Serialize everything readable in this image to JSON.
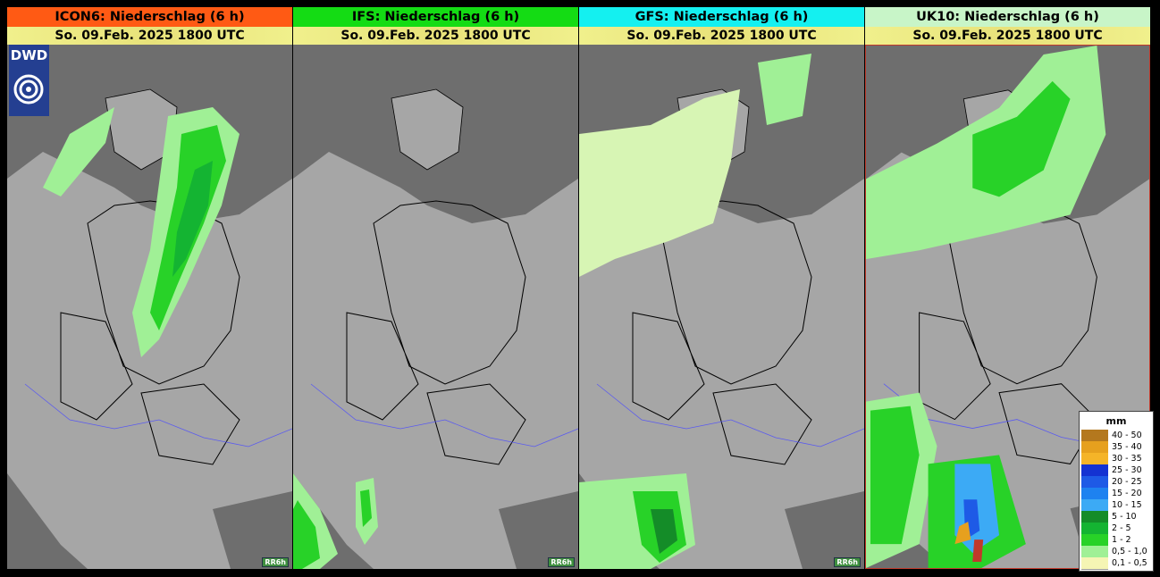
{
  "panels": [
    {
      "title": "ICON6: Niederschlag (6 h)",
      "date": "So. 09.Feb. 2025 1800 UTC",
      "header_color": "#ff5a14",
      "badge": "RR6h"
    },
    {
      "title": "IFS: Niederschlag (6 h)",
      "date": "So. 09.Feb. 2025 1800 UTC",
      "header_color": "#14dc14",
      "badge": "RR6h"
    },
    {
      "title": "GFS: Niederschlag (6 h)",
      "date": "So. 09.Feb. 2025 1800 UTC",
      "header_color": "#14f0f0",
      "badge": "RR6h"
    },
    {
      "title": "UK10: Niederschlag (6 h)",
      "date": "So. 09.Feb. 2025 1800 UTC",
      "header_color": "#c8f5c8",
      "badge": ""
    }
  ],
  "logo": {
    "text": "DWD"
  },
  "legend": {
    "unit": "mm",
    "items": [
      {
        "label": "40 - 50",
        "color": "#b4781e"
      },
      {
        "label": "35 - 40",
        "color": "#e6a01e"
      },
      {
        "label": "30 - 35",
        "color": "#f5b428"
      },
      {
        "label": "25 - 30",
        "color": "#1432d2"
      },
      {
        "label": "20 - 25",
        "color": "#1e5ae6"
      },
      {
        "label": "15 - 20",
        "color": "#1e82f0"
      },
      {
        "label": "10 - 15",
        "color": "#3caaf5"
      },
      {
        "label": "5 - 10",
        "color": "#148c28"
      },
      {
        "label": "2 - 5",
        "color": "#14b432"
      },
      {
        "label": "1 - 2",
        "color": "#28d228"
      },
      {
        "label": "0,5 - 1,0",
        "color": "#a0f096"
      },
      {
        "label": "0,1 - 0,5",
        "color": "#f5f5b4"
      }
    ]
  },
  "colors": {
    "land": "#a6a6a6",
    "sea": "#6e6e6e",
    "border": "#000000",
    "river": "#5a5af0"
  }
}
